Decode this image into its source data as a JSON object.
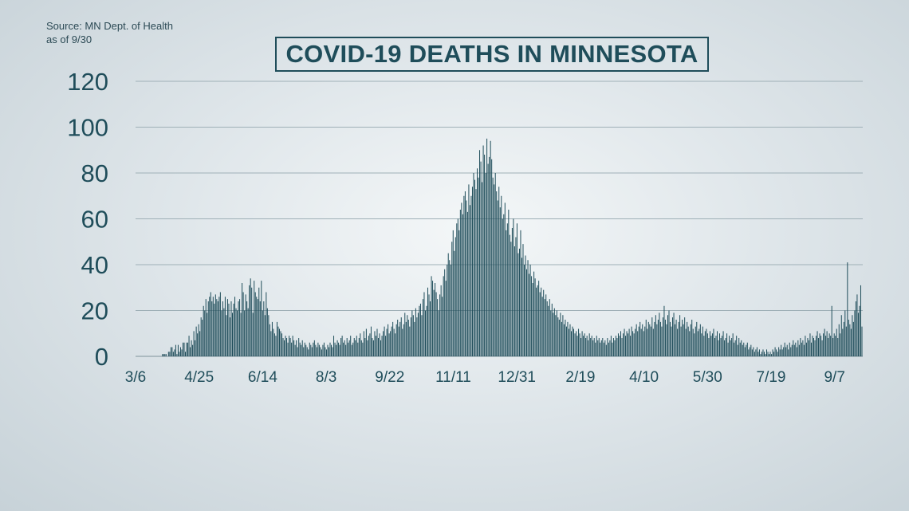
{
  "source": {
    "line1": "Source: MN Dept. of Health",
    "line2": "as of 9/30"
  },
  "chart_data": {
    "type": "bar",
    "title": "COVID-19 DEATHS IN MINNESOTA",
    "xlabel": "",
    "ylabel": "",
    "ylim": [
      0,
      120
    ],
    "yticks": [
      0,
      20,
      40,
      60,
      80,
      100,
      120
    ],
    "xtick_labels": [
      "3/6",
      "4/25",
      "6/14",
      "8/3",
      "9/22",
      "11/11",
      "12/31",
      "2/19",
      "4/10",
      "5/30",
      "7/19",
      "9/7"
    ],
    "grid": true,
    "bar_color": "#1f4d5a",
    "values": [
      0,
      0,
      0,
      0,
      0,
      0,
      0,
      0,
      0,
      0,
      0,
      0,
      0,
      0,
      0,
      0,
      0,
      0,
      0,
      0,
      0,
      0,
      1,
      1,
      1,
      1,
      0,
      2,
      2,
      4,
      4,
      2,
      3,
      5,
      1,
      5,
      2,
      4,
      3,
      6,
      6,
      2,
      6,
      6,
      9,
      4,
      7,
      5,
      11,
      7,
      13,
      10,
      14,
      11,
      17,
      16,
      22,
      20,
      25,
      19,
      24,
      26,
      28,
      24,
      26,
      23,
      27,
      25,
      24,
      26,
      28,
      20,
      24,
      21,
      26,
      18,
      25,
      23,
      17,
      24,
      19,
      23,
      26,
      21,
      20,
      24,
      25,
      19,
      32,
      28,
      20,
      27,
      24,
      21,
      31,
      34,
      30,
      19,
      33,
      28,
      26,
      25,
      30,
      24,
      33,
      20,
      24,
      18,
      28,
      21,
      18,
      14,
      11,
      15,
      12,
      10,
      9,
      15,
      13,
      12,
      11,
      10,
      8,
      7,
      9,
      8,
      6,
      9,
      8,
      6,
      9,
      7,
      5,
      7,
      4,
      8,
      6,
      5,
      7,
      4,
      6,
      5,
      4,
      3,
      6,
      5,
      4,
      6,
      7,
      5,
      4,
      6,
      5,
      4,
      3,
      5,
      6,
      4,
      3,
      5,
      4,
      6,
      5,
      4,
      9,
      6,
      5,
      7,
      6,
      5,
      8,
      9,
      6,
      7,
      5,
      8,
      6,
      7,
      9,
      5,
      6,
      8,
      7,
      9,
      6,
      8,
      10,
      7,
      6,
      11,
      8,
      12,
      7,
      9,
      10,
      13,
      8,
      7,
      11,
      9,
      12,
      8,
      10,
      7,
      9,
      11,
      13,
      9,
      12,
      14,
      10,
      11,
      13,
      15,
      12,
      10,
      14,
      16,
      13,
      15,
      17,
      12,
      14,
      19,
      15,
      18,
      16,
      13,
      17,
      20,
      18,
      15,
      21,
      17,
      19,
      22,
      23,
      18,
      25,
      28,
      20,
      22,
      30,
      27,
      24,
      35,
      33,
      29,
      32,
      28,
      25,
      20,
      27,
      31,
      26,
      35,
      38,
      33,
      40,
      45,
      42,
      40,
      50,
      55,
      46,
      52,
      58,
      60,
      55,
      64,
      67,
      62,
      70,
      72,
      68,
      63,
      75,
      66,
      70,
      74,
      80,
      77,
      73,
      82,
      78,
      90,
      85,
      76,
      92,
      88,
      80,
      95,
      84,
      87,
      94,
      86,
      78,
      75,
      80,
      72,
      68,
      74,
      65,
      70,
      60,
      62,
      67,
      55,
      58,
      64,
      53,
      50,
      56,
      60,
      48,
      52,
      58,
      45,
      47,
      55,
      43,
      49,
      40,
      44,
      38,
      42,
      36,
      40,
      35,
      32,
      37,
      34,
      30,
      31,
      33,
      28,
      30,
      26,
      29,
      25,
      27,
      24,
      22,
      25,
      20,
      23,
      19,
      21,
      18,
      20,
      17,
      16,
      19,
      15,
      18,
      14,
      16,
      13,
      15,
      12,
      14,
      11,
      13,
      12,
      10,
      11,
      9,
      12,
      10,
      8,
      11,
      9,
      10,
      8,
      9,
      7,
      10,
      8,
      9,
      7,
      8,
      6,
      9,
      7,
      8,
      6,
      7,
      8,
      6,
      7,
      5,
      8,
      6,
      7,
      9,
      6,
      8,
      7,
      9,
      8,
      10,
      9,
      11,
      8,
      10,
      12,
      9,
      11,
      10,
      12,
      9,
      13,
      11,
      10,
      12,
      14,
      11,
      13,
      15,
      12,
      14,
      11,
      13,
      16,
      12,
      15,
      14,
      13,
      17,
      12,
      15,
      18,
      14,
      16,
      19,
      15,
      13,
      17,
      22,
      16,
      14,
      18,
      20,
      15,
      13,
      17,
      19,
      14,
      16,
      12,
      15,
      18,
      13,
      16,
      14,
      17,
      12,
      15,
      13,
      11,
      14,
      16,
      12,
      10,
      13,
      15,
      11,
      12,
      14,
      10,
      13,
      9,
      11,
      12,
      10,
      8,
      11,
      9,
      10,
      12,
      8,
      9,
      11,
      7,
      10,
      8,
      9,
      11,
      7,
      8,
      10,
      6,
      9,
      7,
      8,
      10,
      6,
      7,
      9,
      5,
      8,
      6,
      7,
      5,
      6,
      4,
      5,
      6,
      3,
      4,
      5,
      3,
      4,
      2,
      3,
      4,
      2,
      3,
      1,
      2,
      3,
      2,
      1,
      3,
      2,
      1,
      2,
      1,
      3,
      2,
      4,
      3,
      2,
      4,
      3,
      5,
      3,
      4,
      6,
      4,
      5,
      3,
      6,
      4,
      5,
      7,
      5,
      6,
      4,
      7,
      5,
      8,
      6,
      7,
      5,
      9,
      6,
      8,
      7,
      10,
      6,
      9,
      8,
      7,
      9,
      11,
      8,
      10,
      9,
      7,
      10,
      12,
      9,
      11,
      8,
      10,
      9,
      22,
      8,
      10,
      9,
      12,
      8,
      14,
      10,
      18,
      12,
      15,
      20,
      13,
      41,
      16,
      14,
      12,
      18,
      15,
      20,
      24,
      27,
      19,
      22,
      31,
      13
    ]
  }
}
